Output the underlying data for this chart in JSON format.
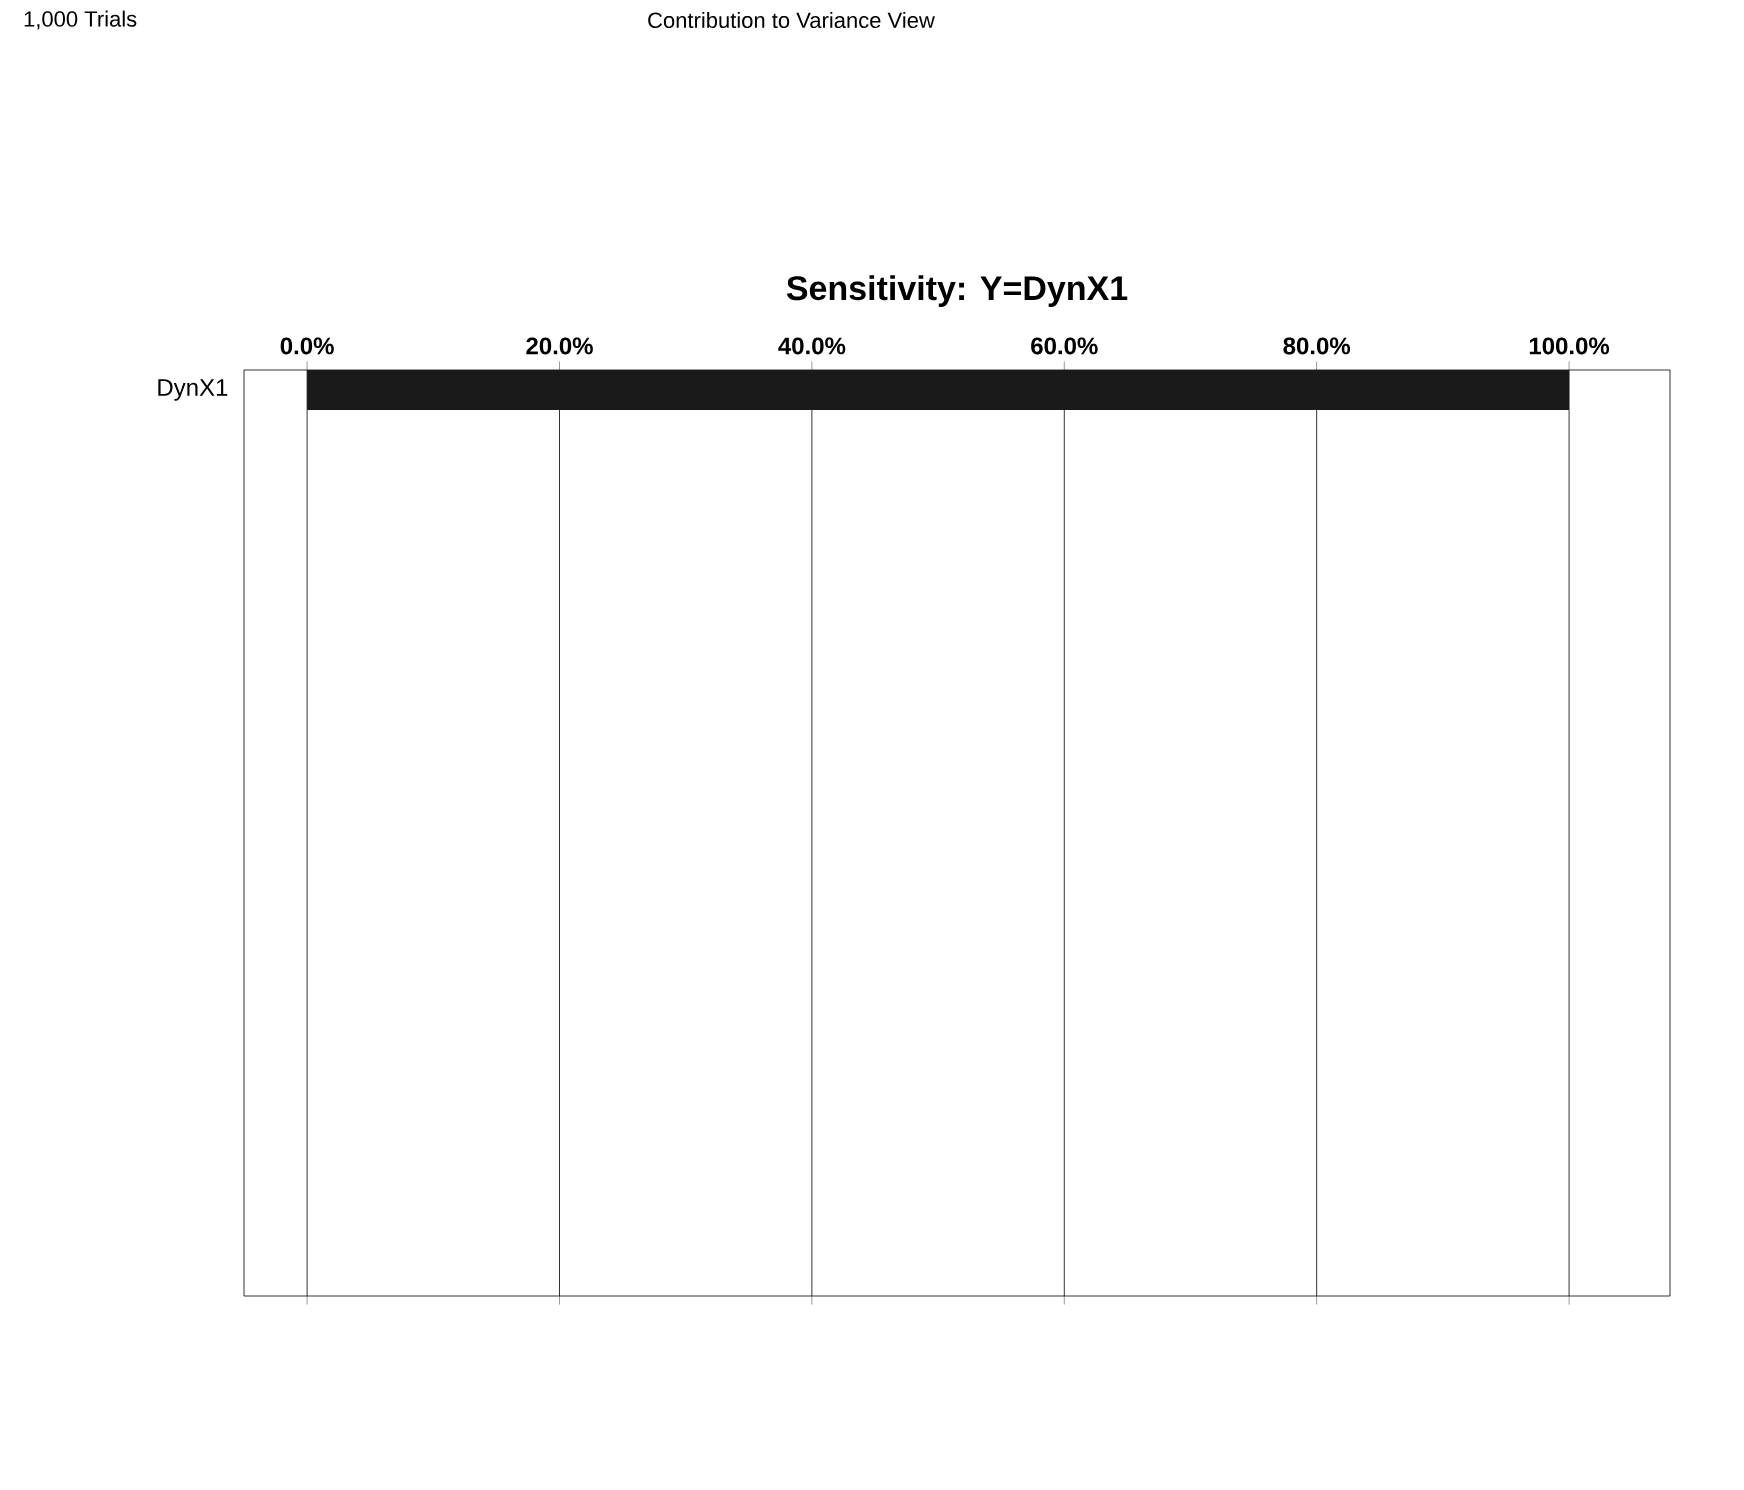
{
  "chart_data": {
    "type": "bar",
    "orientation": "horizontal",
    "title": "Sensitivity: Y=DynX1",
    "annotations": [
      "1,000 Trials",
      "Contribution to Variance View"
    ],
    "categories": [
      "DynX1"
    ],
    "values": [
      100
    ],
    "color": "#1a1a1a",
    "xlim": [
      -5,
      108
    ],
    "xticks": [
      {
        "value": 0,
        "label": "0.0%"
      },
      {
        "value": 20,
        "label": "20.0%"
      },
      {
        "value": 40,
        "label": "40.0%"
      },
      {
        "value": 60,
        "label": "60.0%"
      },
      {
        "value": 80,
        "label": "80.0%"
      },
      {
        "value": 100,
        "label": "100.0%"
      }
    ],
    "grid": "x"
  }
}
